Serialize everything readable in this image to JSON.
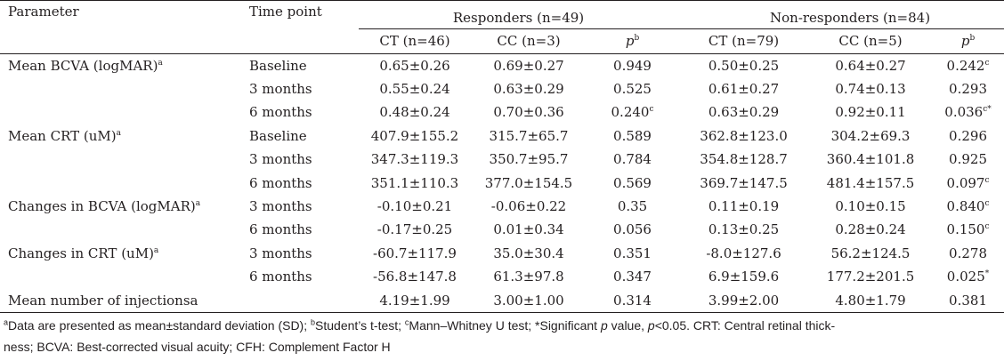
{
  "headers": {
    "parameter": "Parameter",
    "time_point": "Time point",
    "responders": "Responders (n=49)",
    "non_responders": "Non-responders (n=84)",
    "sub": [
      "CT (n=46)",
      "CC (n=3)",
      "p",
      "CT (n=79)",
      "CC (n=5)",
      "p"
    ],
    "p_sup": "b"
  },
  "rows": [
    {
      "param": "Mean BCVA (logMAR)",
      "param_sup": "a",
      "time": "Baseline",
      "r_ct": "0.65±0.26",
      "r_cc": "0.69±0.27",
      "r_p": "0.949",
      "r_p_sup": "",
      "n_ct": "0.50±0.25",
      "n_cc": "0.64±0.27",
      "n_p": "0.242",
      "n_p_sup": "c"
    },
    {
      "param": "",
      "param_sup": "",
      "time": "3 months",
      "r_ct": "0.55±0.24",
      "r_cc": "0.63±0.29",
      "r_p": "0.525",
      "r_p_sup": "",
      "n_ct": "0.61±0.27",
      "n_cc": "0.74±0.13",
      "n_p": "0.293",
      "n_p_sup": ""
    },
    {
      "param": "",
      "param_sup": "",
      "time": "6 months",
      "r_ct": "0.48±0.24",
      "r_cc": "0.70±0.36",
      "r_p": "0.240",
      "r_p_sup": "c",
      "n_ct": "0.63±0.29",
      "n_cc": "0.92±0.11",
      "n_p": "0.036",
      "n_p_sup": "c*"
    },
    {
      "param": "Mean CRT (uM)",
      "param_sup": "a",
      "time": "Baseline",
      "r_ct": "407.9±155.2",
      "r_cc": "315.7±65.7",
      "r_p": "0.589",
      "r_p_sup": "",
      "n_ct": "362.8±123.0",
      "n_cc": "304.2±69.3",
      "n_p": "0.296",
      "n_p_sup": ""
    },
    {
      "param": "",
      "param_sup": "",
      "time": "3 months",
      "r_ct": "347.3±119.3",
      "r_cc": "350.7±95.7",
      "r_p": "0.784",
      "r_p_sup": "",
      "n_ct": "354.8±128.7",
      "n_cc": "360.4±101.8",
      "n_p": "0.925",
      "n_p_sup": ""
    },
    {
      "param": "",
      "param_sup": "",
      "time": "6 months",
      "r_ct": "351.1±110.3",
      "r_cc": "377.0±154.5",
      "r_p": "0.569",
      "r_p_sup": "",
      "n_ct": "369.7±147.5",
      "n_cc": "481.4±157.5",
      "n_p": "0.097",
      "n_p_sup": "c"
    },
    {
      "param": "Changes in BCVA (logMAR)",
      "param_sup": "a",
      "time": "3 months",
      "r_ct": "-0.10±0.21",
      "r_cc": "-0.06±0.22",
      "r_p": "0.35",
      "r_p_sup": "",
      "n_ct": "0.11±0.19",
      "n_cc": "0.10±0.15",
      "n_p": "0.840",
      "n_p_sup": "c"
    },
    {
      "param": "",
      "param_sup": "",
      "time": "6 months",
      "r_ct": "-0.17±0.25",
      "r_cc": "0.01±0.34",
      "r_p": "0.056",
      "r_p_sup": "",
      "n_ct": "0.13±0.25",
      "n_cc": "0.28±0.24",
      "n_p": "0.150",
      "n_p_sup": "c"
    },
    {
      "param": "Changes in CRT (uM)",
      "param_sup": "a",
      "time": "3 months",
      "r_ct": "-60.7±117.9",
      "r_cc": "35.0±30.4",
      "r_p": "0.351",
      "r_p_sup": "",
      "n_ct": "-8.0±127.6",
      "n_cc": "56.2±124.5",
      "n_p": "0.278",
      "n_p_sup": ""
    },
    {
      "param": "",
      "param_sup": "",
      "time": "6 months",
      "r_ct": "-56.8±147.8",
      "r_cc": "61.3±97.8",
      "r_p": "0.347",
      "r_p_sup": "",
      "n_ct": "6.9±159.6",
      "n_cc": "177.2±201.5",
      "n_p": "0.025",
      "n_p_sup": "*"
    },
    {
      "param": "Mean number of injectionsa",
      "param_sup": "",
      "time": "",
      "r_ct": "4.19±1.99",
      "r_cc": "3.00±1.00",
      "r_p": "0.314",
      "r_p_sup": "",
      "n_ct": "3.99±2.00",
      "n_cc": "4.80±1.79",
      "n_p": "0.381",
      "n_p_sup": ""
    }
  ],
  "footnote": {
    "sup_a": "a",
    "part1": "Data are presented as mean±standard deviation (SD); ",
    "sup_b": "b",
    "part2": "Student’s t-test; ",
    "sup_c": "c",
    "part3": "Mann–Whitney U test; *Significant ",
    "p1": "p",
    "part4": " value, ",
    "p2": "p",
    "part5": "<0.05. CRT: Central retinal thick-",
    "line2": "ness; BCVA: Best-corrected visual acuity; CFH: Complement Factor H"
  }
}
